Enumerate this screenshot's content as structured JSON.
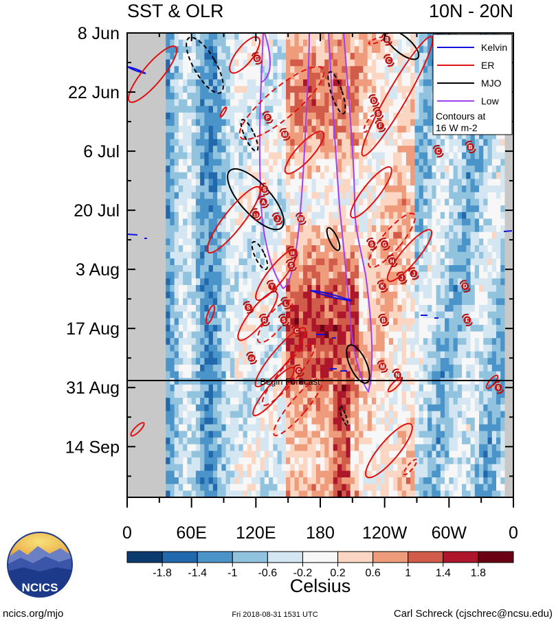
{
  "chart_data": {
    "type": "heatmap",
    "title_left": "SST & OLR",
    "title_right": "10N - 20N",
    "x_ticks": [
      "0",
      "60E",
      "120E",
      "180",
      "120W",
      "60W",
      "0"
    ],
    "x_range": [
      0,
      360
    ],
    "y_ticks": [
      "8 Jun",
      "22 Jun",
      "6 Jul",
      "20 Jul",
      "3 Aug",
      "17 Aug",
      "31 Aug",
      "14 Sep"
    ],
    "y_range_days": [
      0,
      110
    ],
    "forecast_day": 84,
    "forecast_label": "Begin Forecast",
    "colorbar_labels": [
      "-1.8",
      "-1.4",
      "-1",
      "-0.6",
      "-0.2",
      "0.2",
      "0.6",
      "1",
      "1.4",
      "1.8"
    ],
    "colorbar_unit": "Celsius",
    "colorbar_colors": [
      "#0a3a6e",
      "#2268ad",
      "#4a94c9",
      "#92c3de",
      "#d3e6f1",
      "#f7f7f7",
      "#fbd6c3",
      "#ee9c7c",
      "#d25c4a",
      "#ad162b",
      "#6b0014"
    ],
    "legend": [
      {
        "label": "Kelvin",
        "color": "#1010e0"
      },
      {
        "label": "ER",
        "color": "#e01010"
      },
      {
        "label": "MJO",
        "color": "#000000"
      },
      {
        "label": "Low",
        "color": "#a040f0"
      }
    ],
    "legend_note": [
      "Contours at",
      "16 W m-2"
    ],
    "storms": [
      {
        "letter": "B",
        "lon": 242,
        "day": 1.5
      },
      {
        "letter": "G",
        "lon": 121,
        "day": 6
      },
      {
        "letter": "C",
        "lon": 244,
        "day": 6.5
      },
      {
        "letter": "D",
        "lon": 230,
        "day": 16
      },
      {
        "letter": "S",
        "lon": 234,
        "day": 19
      },
      {
        "letter": "P",
        "lon": 131,
        "day": 20
      },
      {
        "letter": "F",
        "lon": 236,
        "day": 22
      },
      {
        "letter": "M",
        "lon": 147,
        "day": 24
      },
      {
        "letter": "B",
        "lon": 320,
        "day": 27
      },
      {
        "letter": "C",
        "lon": 290,
        "day": 28
      },
      {
        "letter": "S",
        "lon": 128,
        "day": 37
      },
      {
        "letter": "A",
        "lon": 127,
        "day": 40
      },
      {
        "letter": "13",
        "lon": 120,
        "day": 43
      },
      {
        "letter": "J",
        "lon": 140,
        "day": 44
      },
      {
        "letter": "W",
        "lon": 162,
        "day": 44
      },
      {
        "letter": "S",
        "lon": 228,
        "day": 50
      },
      {
        "letter": "G",
        "lon": 240,
        "day": 50
      },
      {
        "letter": "18",
        "lon": 154,
        "day": 52
      },
      {
        "letter": "H",
        "lon": 247,
        "day": 54
      },
      {
        "letter": "S",
        "lon": 153,
        "day": 55
      },
      {
        "letter": "J",
        "lon": 256,
        "day": 58
      },
      {
        "letter": "J",
        "lon": 267,
        "day": 57
      },
      {
        "letter": "Y",
        "lon": 135,
        "day": 60
      },
      {
        "letter": "K",
        "lon": 238,
        "day": 60
      },
      {
        "letter": "D",
        "lon": 315,
        "day": 60
      },
      {
        "letter": "L",
        "lon": 148,
        "day": 64
      },
      {
        "letter": "S",
        "lon": 113,
        "day": 65
      },
      {
        "letter": "R",
        "lon": 128,
        "day": 68
      },
      {
        "letter": "S",
        "lon": 146,
        "day": 68
      },
      {
        "letter": "B",
        "lon": 239,
        "day": 68
      },
      {
        "letter": "E",
        "lon": 317,
        "day": 68
      },
      {
        "letter": "C",
        "lon": 158,
        "day": 70.5
      },
      {
        "letter": "24",
        "lon": 116,
        "day": 77
      },
      {
        "letter": "C",
        "lon": 160,
        "day": 80
      },
      {
        "letter": "M",
        "lon": 238,
        "day": 79
      },
      {
        "letter": "N",
        "lon": 252,
        "day": 81
      },
      {
        "letter": "6",
        "lon": 346,
        "day": 84
      }
    ]
  },
  "footer": {
    "logo": "NCICS",
    "left": "ncics.org/mjo",
    "center": "Fri 2018-08-31 1531 UTC",
    "right": "Carl Schreck (cjschrec@ncsu.edu)"
  }
}
